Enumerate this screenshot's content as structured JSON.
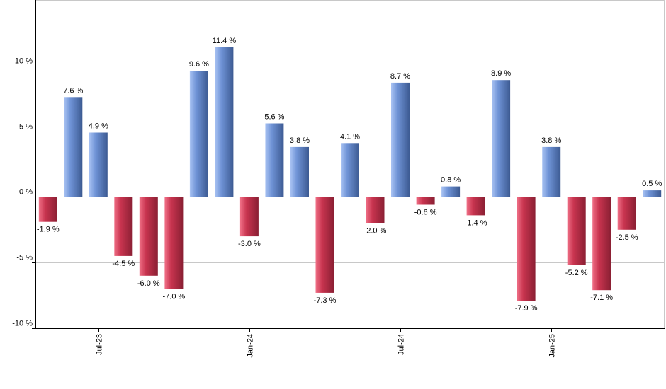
{
  "chart_data": {
    "type": "bar",
    "values": [
      -1.9,
      7.6,
      4.9,
      -4.5,
      -6.0,
      -7.0,
      9.6,
      11.4,
      -3.0,
      5.6,
      3.8,
      -7.3,
      4.1,
      -2.0,
      8.7,
      -0.6,
      0.8,
      -1.4,
      8.9,
      -7.9,
      3.8,
      -5.2,
      -7.1,
      -2.5,
      0.5
    ],
    "data_labels": [
      "-1.9 %",
      "7.6 %",
      "4.9 %",
      "-4.5 %",
      "-6.0 %",
      "-7.0 %",
      "9.6 %",
      "11.4 %",
      "-3.0 %",
      "5.6 %",
      "3.8 %",
      "-7.3 %",
      "4.1 %",
      "-2.0 %",
      "8.7 %",
      "-0.6 %",
      "0.8 %",
      "-1.4 %",
      "8.9 %",
      "-7.9 %",
      "3.8 %",
      "-5.2 %",
      "-7.1 %",
      "-2.5 %",
      "0.5 %"
    ],
    "x_ticks": [
      {
        "label": "Jul-23",
        "index": 2
      },
      {
        "label": "Jan-24",
        "index": 8
      },
      {
        "label": "Jul-24",
        "index": 14
      },
      {
        "label": "Jan-25",
        "index": 20
      }
    ],
    "y_ticks": [
      {
        "value": 10,
        "label": "10 %"
      },
      {
        "value": 5,
        "label": "5 %"
      },
      {
        "value": 0,
        "label": "0 %"
      },
      {
        "value": -5,
        "label": "-5 %"
      },
      {
        "value": -10,
        "label": "-10 %"
      }
    ],
    "ylim": [
      -10,
      15
    ],
    "reference_line": 10,
    "grid": true,
    "colors": {
      "positive": "#6f93d6",
      "positive_light": "#a9c3f3",
      "positive_dark": "#3c5a92",
      "negative": "#c8344f",
      "negative_light": "#f07087",
      "negative_dark": "#8a1f33",
      "reference_line": "#2e7d32",
      "grid": "#c8c8c8",
      "axis": "#000000"
    },
    "title": "",
    "xlabel": "",
    "ylabel": ""
  }
}
